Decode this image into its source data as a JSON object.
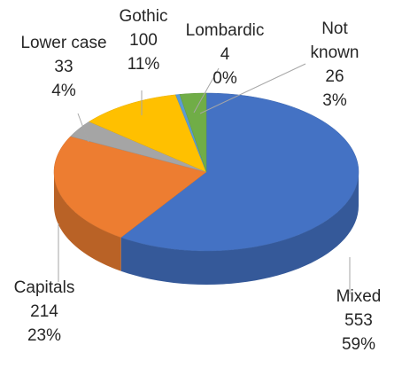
{
  "chart_data": {
    "type": "pie",
    "title": "",
    "style": "3d-pie",
    "slices": [
      {
        "label_lines": [
          "Mixed"
        ],
        "value": "553",
        "percent": "59%",
        "color": "#4472C4"
      },
      {
        "label_lines": [
          "Capitals"
        ],
        "value": "214",
        "percent": "23%",
        "color": "#ED7D31"
      },
      {
        "label_lines": [
          "Lower case"
        ],
        "value": "33",
        "percent": "4%",
        "color": "#A5A5A5"
      },
      {
        "label_lines": [
          "Gothic"
        ],
        "value": "100",
        "percent": "11%",
        "color": "#FFC000"
      },
      {
        "label_lines": [
          "Lombardic"
        ],
        "value": "4",
        "percent": "0%",
        "color": "#5B9BD5"
      },
      {
        "label_lines": [
          "Not",
          "known"
        ],
        "value": "26",
        "percent": "3%",
        "color": "#70AD47"
      }
    ]
  }
}
